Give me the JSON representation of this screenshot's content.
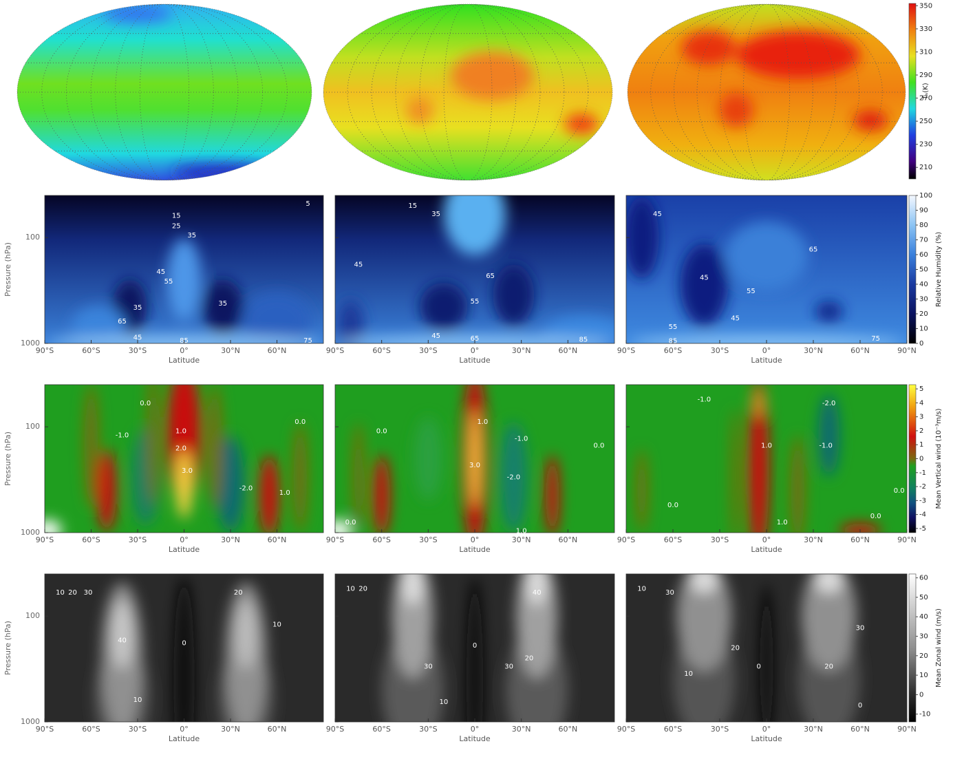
{
  "chart_data": [
    {
      "type": "map",
      "colorbar": {
        "label": "Tₛ(K)",
        "lim": [
          200,
          352
        ],
        "ticks": [
          210,
          230,
          250,
          270,
          290,
          310,
          330,
          350
        ]
      }
    },
    {
      "type": "contour",
      "ylabel": "Pressure (hPa)",
      "xlabel": "Latitude",
      "log_y": true,
      "xlim": [
        -90,
        90
      ],
      "xticks": [
        {
          "value": -90,
          "label": "90°S"
        },
        {
          "value": -60,
          "label": "60°S"
        },
        {
          "value": -30,
          "label": "30°S"
        },
        {
          "value": 0,
          "label": "0°"
        },
        {
          "value": 30,
          "label": "30°N"
        },
        {
          "value": 60,
          "label": "60°N"
        },
        {
          "value": 90,
          "label": "90°N"
        }
      ],
      "ylim": [
        1000,
        40
      ],
      "yticks": [
        100,
        1000
      ],
      "colorbar": {
        "label": "Relative Humidity (%)",
        "lim": [
          0,
          100
        ],
        "ticks": [
          0,
          10,
          20,
          30,
          40,
          50,
          60,
          70,
          80,
          90,
          100
        ]
      },
      "panels": [
        {
          "contour_labels": [
            "5",
            "15",
            "25",
            "35",
            "45",
            "55",
            "65",
            "35",
            "35",
            "45",
            "85",
            "75"
          ]
        },
        {
          "contour_labels": [
            "15",
            "35",
            "45",
            "65",
            "55",
            "45",
            "65",
            "85"
          ]
        },
        {
          "contour_labels": [
            "45",
            "65",
            "55",
            "45",
            "55",
            "45",
            "85",
            "75"
          ]
        }
      ]
    },
    {
      "type": "contour",
      "ylabel": "Pressure (hPa)",
      "xlabel": "Latitude",
      "log_y": true,
      "xlim": [
        -90,
        90
      ],
      "xticks": [
        {
          "value": -90,
          "label": "90°S"
        },
        {
          "value": -60,
          "label": "60°S"
        },
        {
          "value": -30,
          "label": "30°S"
        },
        {
          "value": 0,
          "label": "0°"
        },
        {
          "value": 30,
          "label": "30°N"
        },
        {
          "value": 60,
          "label": "60°N"
        },
        {
          "value": 90,
          "label": "90°N"
        }
      ],
      "ylim": [
        1000,
        40
      ],
      "yticks": [
        100,
        1000
      ],
      "colorbar": {
        "label": "Mean Vertical wind (10⁻³m/s)",
        "lim": [
          -5.3,
          5.3
        ],
        "ticks": [
          -5,
          -4,
          -3,
          -2,
          -1,
          0,
          1,
          2,
          3,
          4,
          5
        ]
      },
      "panels": [
        {
          "contour_labels": [
            "0.0",
            "1.0",
            "2.0",
            "3.0",
            "-1.0",
            "-2.0",
            "1.0",
            "0.0"
          ]
        },
        {
          "contour_labels": [
            "0.0",
            "1.0",
            "3.0",
            "-1.0",
            "-2.0",
            "0.0",
            "0.0",
            "1.0"
          ]
        },
        {
          "contour_labels": [
            "-1.0",
            "0.0",
            "1.0",
            "-2.0",
            "-1.0",
            "0.0",
            "1.0",
            "0.0"
          ]
        }
      ]
    },
    {
      "type": "contour",
      "ylabel": "Pressure (hPa)",
      "xlabel": "Latitude",
      "log_y": true,
      "xlim": [
        -90,
        90
      ],
      "xticks": [
        {
          "value": -90,
          "label": "90°S"
        },
        {
          "value": -60,
          "label": "60°S"
        },
        {
          "value": -30,
          "label": "30°S"
        },
        {
          "value": 0,
          "label": "0°"
        },
        {
          "value": 30,
          "label": "30°N"
        },
        {
          "value": 60,
          "label": "60°N"
        },
        {
          "value": 90,
          "label": "90°N"
        }
      ],
      "ylim": [
        1000,
        40
      ],
      "yticks": [
        100,
        1000
      ],
      "colorbar": {
        "label": "Mean Zonal wind (m/s)",
        "lim": [
          -14,
          62
        ],
        "ticks": [
          -10,
          0,
          10,
          20,
          30,
          40,
          50,
          60
        ]
      },
      "panels": [
        {
          "contour_labels": [
            "10",
            "20",
            "30",
            "40",
            "0",
            "20",
            "10",
            "10"
          ]
        },
        {
          "contour_labels": [
            "10",
            "20",
            "30",
            "40",
            "0",
            "20",
            "30",
            "10"
          ]
        },
        {
          "contour_labels": [
            "10",
            "30",
            "20",
            "0",
            "30",
            "20",
            "10",
            "0"
          ]
        }
      ]
    }
  ]
}
